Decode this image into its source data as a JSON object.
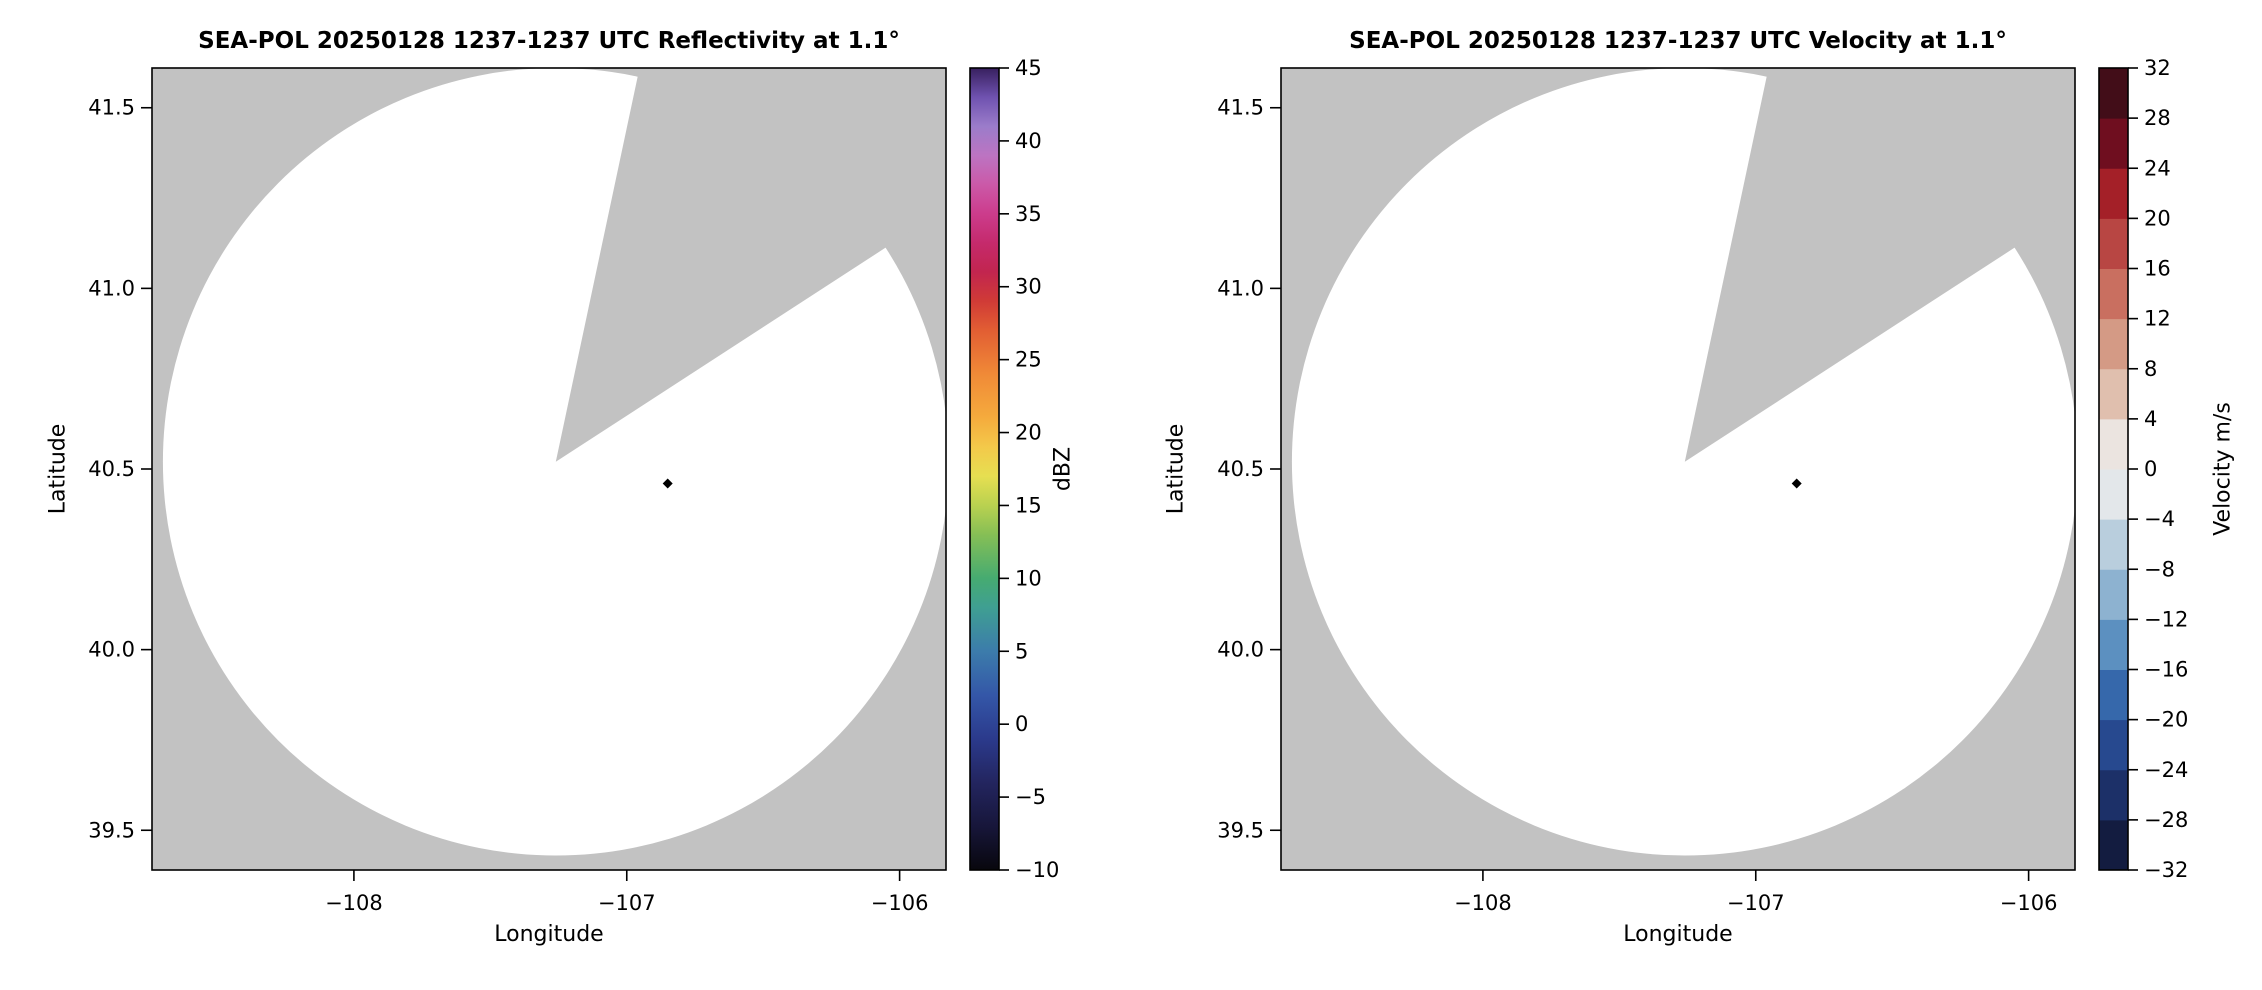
{
  "panels": [
    {
      "title": "SEA-POL 20250128 1237-1237 UTC Reflectivity at 1.1°",
      "xlabel": "Longitude",
      "ylabel": "Latitude",
      "colorbar_label": "dBZ"
    },
    {
      "title": "SEA-POL 20250128 1237-1237 UTC Velocity at 1.1°",
      "xlabel": "Longitude",
      "ylabel": "Latitude",
      "colorbar_label": "Velocity m/s"
    }
  ],
  "chart_data": [
    {
      "type": "heatmap",
      "subtype": "radar_ppi",
      "field": "Reflectivity",
      "title": "SEA-POL 20250128 1237-1237 UTC Reflectivity at 1.1°",
      "xlabel": "Longitude",
      "ylabel": "Latitude",
      "xlim": [
        -108.74,
        -105.83
      ],
      "ylim": [
        39.39,
        41.61
      ],
      "xticks": [
        {
          "v": -108,
          "label": "−108"
        },
        {
          "v": -107,
          "label": "−107"
        },
        {
          "v": -106,
          "label": "−106"
        }
      ],
      "yticks": [
        {
          "v": 41.5,
          "label": "41.5"
        },
        {
          "v": 41.0,
          "label": "41.0"
        },
        {
          "v": 40.5,
          "label": "40.5"
        },
        {
          "v": 40.0,
          "label": "40.0"
        },
        {
          "v": 39.5,
          "label": "39.5"
        }
      ],
      "plot_bg": "#c2c2c2",
      "scan_fill": "#ffffff",
      "radar": {
        "center_lon": -107.26,
        "center_lat": 40.52,
        "radius_lon_deg": 1.44,
        "radius_lat_deg": 1.09,
        "blocked_azimuth_deg": [
          12,
          57
        ]
      },
      "marker": {
        "lon": -106.85,
        "lat": 40.46,
        "shape": "diamond",
        "color": "#000000"
      },
      "colorbar": {
        "label": "dBZ",
        "vmin": -10,
        "vmax": 45,
        "style": "gradient",
        "ticks": [
          {
            "v": 45,
            "label": "45"
          },
          {
            "v": 40,
            "label": "40"
          },
          {
            "v": 35,
            "label": "35"
          },
          {
            "v": 30,
            "label": "30"
          },
          {
            "v": 25,
            "label": "25"
          },
          {
            "v": 20,
            "label": "20"
          },
          {
            "v": 15,
            "label": "15"
          },
          {
            "v": 10,
            "label": "10"
          },
          {
            "v": 5,
            "label": "5"
          },
          {
            "v": 0,
            "label": "0"
          },
          {
            "v": -5,
            "label": "−5"
          },
          {
            "v": -10,
            "label": "−10"
          }
        ],
        "gradient_stops": [
          {
            "v": -10,
            "color": "#08070d"
          },
          {
            "v": -7,
            "color": "#17163a"
          },
          {
            "v": -4,
            "color": "#23255f"
          },
          {
            "v": -1,
            "color": "#2b3a8c"
          },
          {
            "v": 2,
            "color": "#3457a8"
          },
          {
            "v": 5,
            "color": "#3c7cab"
          },
          {
            "v": 8,
            "color": "#3f9f92"
          },
          {
            "v": 10,
            "color": "#46ab71"
          },
          {
            "v": 13,
            "color": "#86bf55"
          },
          {
            "v": 15,
            "color": "#b9d150"
          },
          {
            "v": 17,
            "color": "#e6df51"
          },
          {
            "v": 19,
            "color": "#f3c94a"
          },
          {
            "v": 21,
            "color": "#f5ab3d"
          },
          {
            "v": 24,
            "color": "#f08a37"
          },
          {
            "v": 27,
            "color": "#e25e33"
          },
          {
            "v": 29,
            "color": "#d03b36"
          },
          {
            "v": 31,
            "color": "#c2254f"
          },
          {
            "v": 33,
            "color": "#c52a6c"
          },
          {
            "v": 35,
            "color": "#cc3c8c"
          },
          {
            "v": 37,
            "color": "#cb59a8"
          },
          {
            "v": 39,
            "color": "#bc74c2"
          },
          {
            "v": 41,
            "color": "#9b7cca"
          },
          {
            "v": 43,
            "color": "#6f52b0"
          },
          {
            "v": 45,
            "color": "#38205f"
          }
        ]
      }
    },
    {
      "type": "heatmap",
      "subtype": "radar_ppi",
      "field": "Velocity",
      "title": "SEA-POL 20250128 1237-1237 UTC Velocity at 1.1°",
      "xlabel": "Longitude",
      "ylabel": "Latitude",
      "xlim": [
        -108.74,
        -105.83
      ],
      "ylim": [
        39.39,
        41.61
      ],
      "xticks": [
        {
          "v": -108,
          "label": "−108"
        },
        {
          "v": -107,
          "label": "−107"
        },
        {
          "v": -106,
          "label": "−106"
        }
      ],
      "yticks": [
        {
          "v": 41.5,
          "label": "41.5"
        },
        {
          "v": 41.0,
          "label": "41.0"
        },
        {
          "v": 40.5,
          "label": "40.5"
        },
        {
          "v": 40.0,
          "label": "40.0"
        },
        {
          "v": 39.5,
          "label": "39.5"
        }
      ],
      "plot_bg": "#c2c2c2",
      "scan_fill": "#ffffff",
      "radar": {
        "center_lon": -107.26,
        "center_lat": 40.52,
        "radius_lon_deg": 1.44,
        "radius_lat_deg": 1.09,
        "blocked_azimuth_deg": [
          12,
          57
        ]
      },
      "marker": {
        "lon": -106.85,
        "lat": 40.46,
        "shape": "diamond",
        "color": "#000000"
      },
      "colorbar": {
        "label": "Velocity m/s",
        "vmin": -32,
        "vmax": 32,
        "style": "discrete",
        "segment_colors": [
          "#131c40",
          "#1c3068",
          "#27498f",
          "#3668ab",
          "#5c90c0",
          "#8db2d0",
          "#b9cedd",
          "#e3e7ea",
          "#ebe4e0",
          "#e0bfae",
          "#d49a85",
          "#c96f60",
          "#b84643",
          "#a42028",
          "#6f0e1f",
          "#420d18"
        ],
        "ticks": [
          {
            "v": 32,
            "label": "32"
          },
          {
            "v": 28,
            "label": "28"
          },
          {
            "v": 24,
            "label": "24"
          },
          {
            "v": 20,
            "label": "20"
          },
          {
            "v": 16,
            "label": "16"
          },
          {
            "v": 12,
            "label": "12"
          },
          {
            "v": 8,
            "label": "8"
          },
          {
            "v": 4,
            "label": "4"
          },
          {
            "v": 0,
            "label": "0"
          },
          {
            "v": -4,
            "label": "−4"
          },
          {
            "v": -8,
            "label": "−8"
          },
          {
            "v": -12,
            "label": "−12"
          },
          {
            "v": -16,
            "label": "−16"
          },
          {
            "v": -20,
            "label": "−20"
          },
          {
            "v": -24,
            "label": "−24"
          },
          {
            "v": -28,
            "label": "−28"
          },
          {
            "v": -32,
            "label": "−32"
          }
        ]
      }
    }
  ]
}
